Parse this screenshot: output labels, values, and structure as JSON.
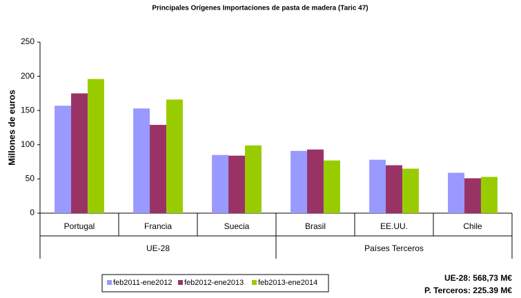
{
  "chart_data": {
    "type": "bar",
    "title": "Principales Orígenes Importaciones de pasta de madera (Taric 47)",
    "y_label": "Millones de euros",
    "categories": [
      "Portugal",
      "Francia",
      "Suecia",
      "Brasil",
      "EE.UU.",
      "Chile"
    ],
    "groups": [
      "UE-28",
      "Países Terceros"
    ],
    "series": [
      {
        "name": "feb2011-ene2012",
        "color": "#9999ff",
        "values": [
          157,
          153,
          85,
          91,
          78,
          59
        ]
      },
      {
        "name": "feb2012-ene2013",
        "color": "#993366",
        "values": [
          175,
          129,
          84,
          93,
          70,
          51
        ]
      },
      {
        "name": "feb2013-ene2014",
        "color": "#99cc00",
        "values": [
          196,
          166,
          99,
          77,
          65,
          53
        ]
      }
    ],
    "ylim": [
      0,
      250
    ],
    "yticks": [
      0,
      50,
      100,
      150,
      200,
      250
    ],
    "grid": false,
    "annotations": [
      "UE-28: 568,73 M€",
      "P. Terceros: 225.39 M€"
    ]
  }
}
